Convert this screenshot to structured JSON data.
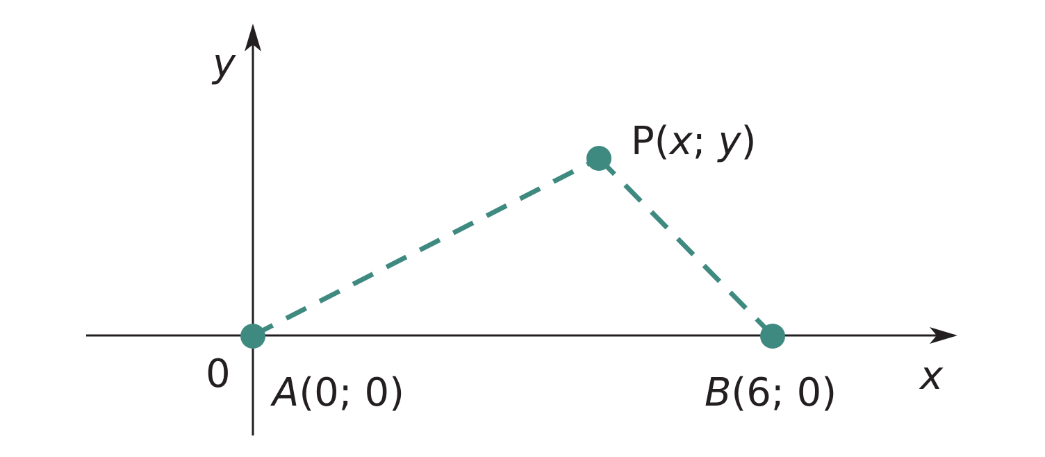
{
  "axes": {
    "x_label": "x",
    "y_label": "y",
    "origin_label": "0"
  },
  "colors": {
    "axis": "#231f20",
    "accent": "#3f8a80",
    "text": "#231f20"
  },
  "points": {
    "A": {
      "name": "A",
      "open": "(",
      "coords": "0; 0",
      "close": ")"
    },
    "B": {
      "name": "B",
      "open": "(",
      "coords": "6; 0",
      "close": ")"
    },
    "P": {
      "name": "P",
      "open": "(",
      "x": "x",
      "sep": "; ",
      "y": "y",
      "close": ")"
    }
  }
}
